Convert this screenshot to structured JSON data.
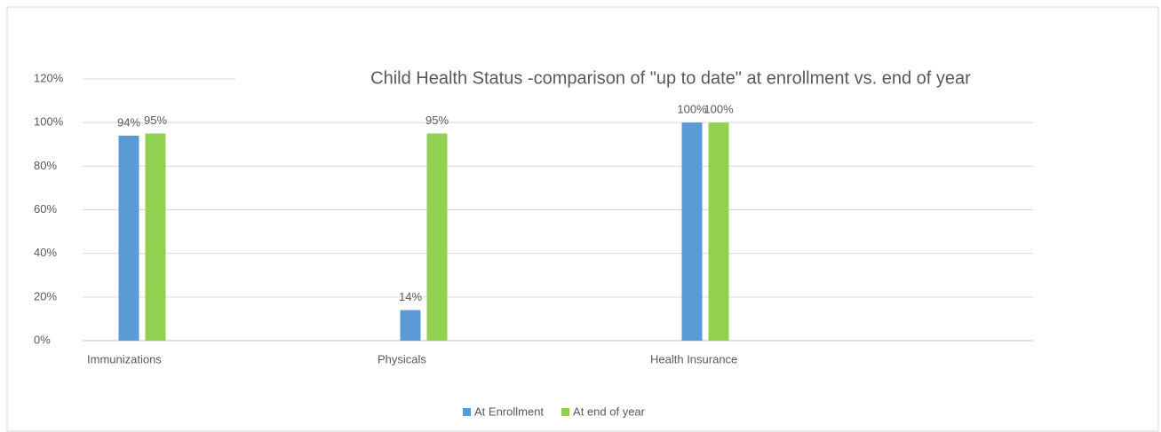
{
  "chart_data": {
    "type": "bar",
    "title": "Child Health Status -comparison of \"up to date\" at enrollment  vs. end of year",
    "categories": [
      "Immunizations",
      "Physicals",
      "Health Insurance"
    ],
    "series": [
      {
        "name": "At Enrollment",
        "color": "#5b9bd5",
        "values": [
          94,
          14,
          100
        ],
        "value_labels": [
          "94%",
          "14%",
          "100%"
        ]
      },
      {
        "name": "At end of year",
        "color": "#92d050",
        "values": [
          95,
          95,
          100
        ],
        "value_labels": [
          "95%",
          "95%",
          "100%"
        ]
      }
    ],
    "ylim": [
      0,
      120
    ],
    "yticks": [
      {
        "value": 0,
        "label": "0%"
      },
      {
        "value": 20,
        "label": "20%"
      },
      {
        "value": 40,
        "label": "40%"
      },
      {
        "value": 60,
        "label": "60%"
      },
      {
        "value": 80,
        "label": "80%"
      },
      {
        "value": 100,
        "label": "100%"
      },
      {
        "value": 120,
        "label": "120%"
      }
    ],
    "grid": true,
    "legend": "bottom"
  }
}
